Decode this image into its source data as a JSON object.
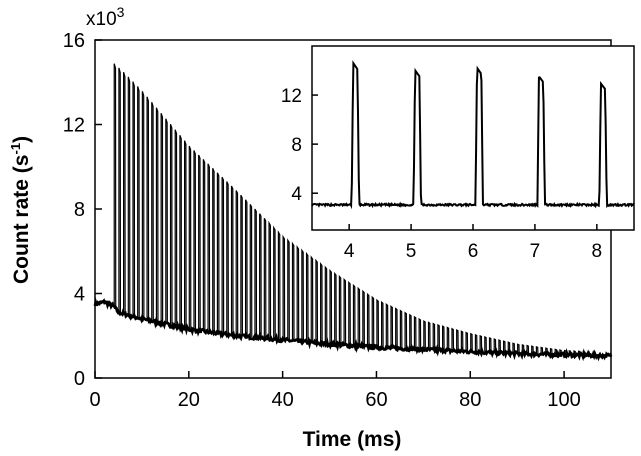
{
  "chart_data": [
    {
      "id": "main",
      "type": "line",
      "title": "",
      "xlabel_main": "Time",
      "xlabel_unit": "(ms)",
      "ylabel_main": "Count rate",
      "ylabel_unit_prefix": "(s",
      "ylabel_unit_exp": "-1",
      "ylabel_unit_suffix": ")",
      "y_multiplier_base": "x10",
      "y_multiplier_exp": "3",
      "xlim": [
        0,
        110
      ],
      "ylim": [
        0,
        16000
      ],
      "x_ticks": [
        0,
        20,
        40,
        60,
        80,
        100
      ],
      "y_ticks": [
        0,
        4000,
        8000,
        12000,
        16000
      ],
      "x_tick_labels": [
        "0",
        "20",
        "40",
        "60",
        "80",
        "100"
      ],
      "y_tick_labels": [
        "0",
        "4",
        "8",
        "12",
        "16"
      ],
      "grid": false,
      "baseline": {
        "description": "background count rate decaying with time",
        "x": [
          0,
          2,
          4,
          5,
          10,
          20,
          30,
          40,
          50,
          60,
          70,
          80,
          90,
          100,
          110
        ],
        "y": [
          3500,
          3600,
          3400,
          3100,
          2800,
          2300,
          2000,
          1800,
          1600,
          1450,
          1350,
          1250,
          1150,
          1100,
          1050
        ]
      },
      "pulses": {
        "description": "periodic narrow peaks every ~1 ms starting near 4 ms",
        "first_time": 4.1,
        "period": 1.0,
        "count": 102,
        "envelope_x": [
          4,
          5,
          6,
          10,
          20,
          30,
          40,
          50,
          60,
          70,
          80,
          90,
          100,
          110
        ],
        "envelope_y": [
          14900,
          14700,
          14500,
          13600,
          11000,
          8900,
          6700,
          5100,
          3700,
          2700,
          2100,
          1600,
          1300,
          1200
        ]
      }
    },
    {
      "id": "inset",
      "type": "line",
      "title": "",
      "xlim": [
        3.4,
        8.6
      ],
      "ylim": [
        1000,
        16000
      ],
      "x_ticks": [
        4,
        5,
        6,
        7,
        8
      ],
      "y_ticks": [
        4000,
        8000,
        12000
      ],
      "x_tick_labels": [
        "4",
        "5",
        "6",
        "7",
        "8"
      ],
      "y_tick_labels": [
        "4",
        "8",
        "12"
      ],
      "baseline_level": 3050,
      "pulse_centers": [
        4.1,
        5.1,
        6.1,
        7.1,
        8.1
      ],
      "pulse_peaks": [
        14800,
        14200,
        14400,
        13700,
        13100
      ],
      "pulse_width": 0.12
    }
  ]
}
